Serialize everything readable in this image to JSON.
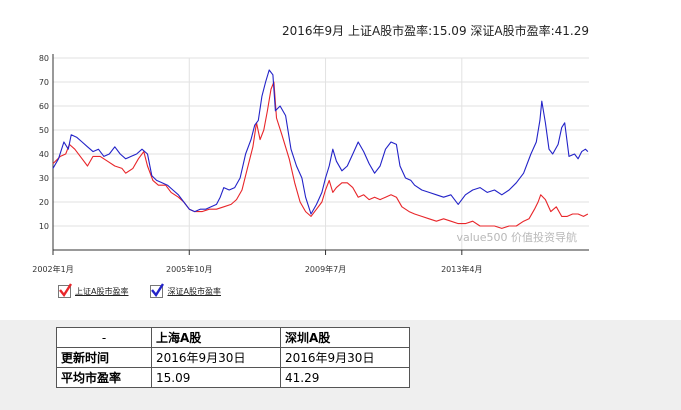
{
  "chart_data": {
    "type": "line",
    "title": "2016年9月 上证A股市盈率:15.09  深证A股市盈率:41.29",
    "xlabel": "",
    "ylabel": "",
    "xlim": [
      2002.0,
      2016.75
    ],
    "ylim": [
      0,
      80
    ],
    "y_ticks": [
      10,
      20,
      30,
      40,
      50,
      60,
      70,
      80
    ],
    "x_ticks": [
      {
        "value": 2002.0,
        "label": "2002年1月"
      },
      {
        "value": 2005.75,
        "label": "2005年10月"
      },
      {
        "value": 2009.5,
        "label": "2009年7月"
      },
      {
        "value": 2013.25,
        "label": "2013年4月"
      }
    ],
    "grid": true,
    "watermark": "value500 价值投资导航",
    "colors": {
      "shanghai": "#e8262a",
      "shenzhen": "#2323c8"
    },
    "series": [
      {
        "name": "上证A股市盈率",
        "color": "#e8262a",
        "points": [
          [
            2002.0,
            36
          ],
          [
            2002.2,
            39
          ],
          [
            2002.35,
            40
          ],
          [
            2002.45,
            44
          ],
          [
            2002.6,
            42
          ],
          [
            2002.8,
            38
          ],
          [
            2002.95,
            35
          ],
          [
            2003.1,
            39
          ],
          [
            2003.3,
            39
          ],
          [
            2003.5,
            37
          ],
          [
            2003.7,
            35
          ],
          [
            2003.9,
            34
          ],
          [
            2004.0,
            32
          ],
          [
            2004.2,
            34
          ],
          [
            2004.35,
            38
          ],
          [
            2004.5,
            41
          ],
          [
            2004.6,
            35
          ],
          [
            2004.75,
            29
          ],
          [
            2004.9,
            27
          ],
          [
            2005.1,
            27
          ],
          [
            2005.25,
            24
          ],
          [
            2005.45,
            22
          ],
          [
            2005.6,
            20
          ],
          [
            2005.75,
            17
          ],
          [
            2005.9,
            16
          ],
          [
            2006.1,
            16
          ],
          [
            2006.3,
            17
          ],
          [
            2006.5,
            17
          ],
          [
            2006.7,
            18
          ],
          [
            2006.9,
            19
          ],
          [
            2007.05,
            21
          ],
          [
            2007.2,
            25
          ],
          [
            2007.35,
            34
          ],
          [
            2007.5,
            43
          ],
          [
            2007.6,
            53
          ],
          [
            2007.7,
            46
          ],
          [
            2007.8,
            50
          ],
          [
            2007.9,
            58
          ],
          [
            2008.0,
            67
          ],
          [
            2008.08,
            70
          ],
          [
            2008.15,
            55
          ],
          [
            2008.3,
            48
          ],
          [
            2008.5,
            38
          ],
          [
            2008.65,
            28
          ],
          [
            2008.8,
            20
          ],
          [
            2008.95,
            16
          ],
          [
            2009.1,
            14
          ],
          [
            2009.25,
            17
          ],
          [
            2009.4,
            20
          ],
          [
            2009.5,
            25
          ],
          [
            2009.6,
            29
          ],
          [
            2009.7,
            24
          ],
          [
            2009.8,
            26
          ],
          [
            2009.95,
            28
          ],
          [
            2010.1,
            28
          ],
          [
            2010.25,
            26
          ],
          [
            2010.4,
            22
          ],
          [
            2010.55,
            23
          ],
          [
            2010.7,
            21
          ],
          [
            2010.85,
            22
          ],
          [
            2011.0,
            21
          ],
          [
            2011.15,
            22
          ],
          [
            2011.3,
            23
          ],
          [
            2011.45,
            22
          ],
          [
            2011.6,
            18
          ],
          [
            2011.8,
            16
          ],
          [
            2011.95,
            15
          ],
          [
            2012.15,
            14
          ],
          [
            2012.35,
            13
          ],
          [
            2012.55,
            12
          ],
          [
            2012.75,
            13
          ],
          [
            2012.95,
            12
          ],
          [
            2013.15,
            11
          ],
          [
            2013.35,
            11
          ],
          [
            2013.55,
            12
          ],
          [
            2013.75,
            10
          ],
          [
            2013.95,
            10
          ],
          [
            2014.15,
            10
          ],
          [
            2014.35,
            9
          ],
          [
            2014.55,
            10
          ],
          [
            2014.75,
            10
          ],
          [
            2014.95,
            12
          ],
          [
            2015.1,
            13
          ],
          [
            2015.25,
            17
          ],
          [
            2015.35,
            20
          ],
          [
            2015.42,
            23
          ],
          [
            2015.55,
            21
          ],
          [
            2015.7,
            16
          ],
          [
            2015.85,
            18
          ],
          [
            2016.0,
            14
          ],
          [
            2016.15,
            14
          ],
          [
            2016.3,
            15
          ],
          [
            2016.45,
            15
          ],
          [
            2016.6,
            14
          ],
          [
            2016.72,
            15
          ]
        ]
      },
      {
        "name": "深证A股市盈率",
        "color": "#2323c8",
        "points": [
          [
            2002.0,
            34
          ],
          [
            2002.15,
            38
          ],
          [
            2002.3,
            45
          ],
          [
            2002.42,
            42
          ],
          [
            2002.5,
            48
          ],
          [
            2002.65,
            47
          ],
          [
            2002.8,
            45
          ],
          [
            2002.95,
            43
          ],
          [
            2003.1,
            41
          ],
          [
            2003.25,
            42
          ],
          [
            2003.4,
            39
          ],
          [
            2003.55,
            40
          ],
          [
            2003.7,
            43
          ],
          [
            2003.85,
            40
          ],
          [
            2004.0,
            38
          ],
          [
            2004.15,
            39
          ],
          [
            2004.3,
            40
          ],
          [
            2004.45,
            42
          ],
          [
            2004.6,
            40
          ],
          [
            2004.72,
            31
          ],
          [
            2004.85,
            29
          ],
          [
            2005.0,
            28
          ],
          [
            2005.15,
            27
          ],
          [
            2005.3,
            25
          ],
          [
            2005.45,
            23
          ],
          [
            2005.6,
            20
          ],
          [
            2005.75,
            17
          ],
          [
            2005.9,
            16
          ],
          [
            2006.05,
            17
          ],
          [
            2006.2,
            17
          ],
          [
            2006.35,
            18
          ],
          [
            2006.5,
            19
          ],
          [
            2006.6,
            22
          ],
          [
            2006.7,
            26
          ],
          [
            2006.85,
            25
          ],
          [
            2007.0,
            26
          ],
          [
            2007.15,
            30
          ],
          [
            2007.3,
            40
          ],
          [
            2007.45,
            46
          ],
          [
            2007.55,
            52
          ],
          [
            2007.65,
            54
          ],
          [
            2007.75,
            64
          ],
          [
            2007.85,
            70
          ],
          [
            2007.95,
            75
          ],
          [
            2008.05,
            73
          ],
          [
            2008.12,
            58
          ],
          [
            2008.25,
            60
          ],
          [
            2008.4,
            56
          ],
          [
            2008.55,
            42
          ],
          [
            2008.7,
            35
          ],
          [
            2008.85,
            30
          ],
          [
            2008.95,
            22
          ],
          [
            2009.1,
            15
          ],
          [
            2009.25,
            19
          ],
          [
            2009.4,
            24
          ],
          [
            2009.5,
            30
          ],
          [
            2009.6,
            35
          ],
          [
            2009.7,
            42
          ],
          [
            2009.8,
            37
          ],
          [
            2009.95,
            33
          ],
          [
            2010.1,
            35
          ],
          [
            2010.25,
            40
          ],
          [
            2010.4,
            45
          ],
          [
            2010.55,
            41
          ],
          [
            2010.7,
            36
          ],
          [
            2010.85,
            32
          ],
          [
            2011.0,
            35
          ],
          [
            2011.15,
            42
          ],
          [
            2011.3,
            45
          ],
          [
            2011.45,
            44
          ],
          [
            2011.55,
            35
          ],
          [
            2011.7,
            30
          ],
          [
            2011.85,
            29
          ],
          [
            2011.95,
            27
          ],
          [
            2012.15,
            25
          ],
          [
            2012.35,
            24
          ],
          [
            2012.55,
            23
          ],
          [
            2012.75,
            22
          ],
          [
            2012.95,
            23
          ],
          [
            2013.15,
            19
          ],
          [
            2013.35,
            23
          ],
          [
            2013.55,
            25
          ],
          [
            2013.75,
            26
          ],
          [
            2013.95,
            24
          ],
          [
            2014.15,
            25
          ],
          [
            2014.35,
            23
          ],
          [
            2014.55,
            25
          ],
          [
            2014.75,
            28
          ],
          [
            2014.95,
            32
          ],
          [
            2015.15,
            40
          ],
          [
            2015.3,
            45
          ],
          [
            2015.4,
            54
          ],
          [
            2015.45,
            62
          ],
          [
            2015.55,
            53
          ],
          [
            2015.65,
            42
          ],
          [
            2015.75,
            40
          ],
          [
            2015.9,
            44
          ],
          [
            2016.0,
            51
          ],
          [
            2016.08,
            53
          ],
          [
            2016.2,
            39
          ],
          [
            2016.35,
            40
          ],
          [
            2016.45,
            38
          ],
          [
            2016.55,
            41
          ],
          [
            2016.65,
            42
          ],
          [
            2016.72,
            41
          ]
        ]
      }
    ]
  },
  "legend": [
    {
      "label": "上证A股市盈率",
      "color": "#e8262a"
    },
    {
      "label": "深证A股市盈率",
      "color": "#2323c8"
    }
  ],
  "table": {
    "headers": [
      "-",
      "上海A股",
      "深圳A股"
    ],
    "rows": [
      {
        "label": "更新时间",
        "sh": "2016年9月30日",
        "sz": "2016年9月30日"
      },
      {
        "label": "平均市盈率",
        "sh": "15.09",
        "sz": "41.29"
      }
    ]
  }
}
